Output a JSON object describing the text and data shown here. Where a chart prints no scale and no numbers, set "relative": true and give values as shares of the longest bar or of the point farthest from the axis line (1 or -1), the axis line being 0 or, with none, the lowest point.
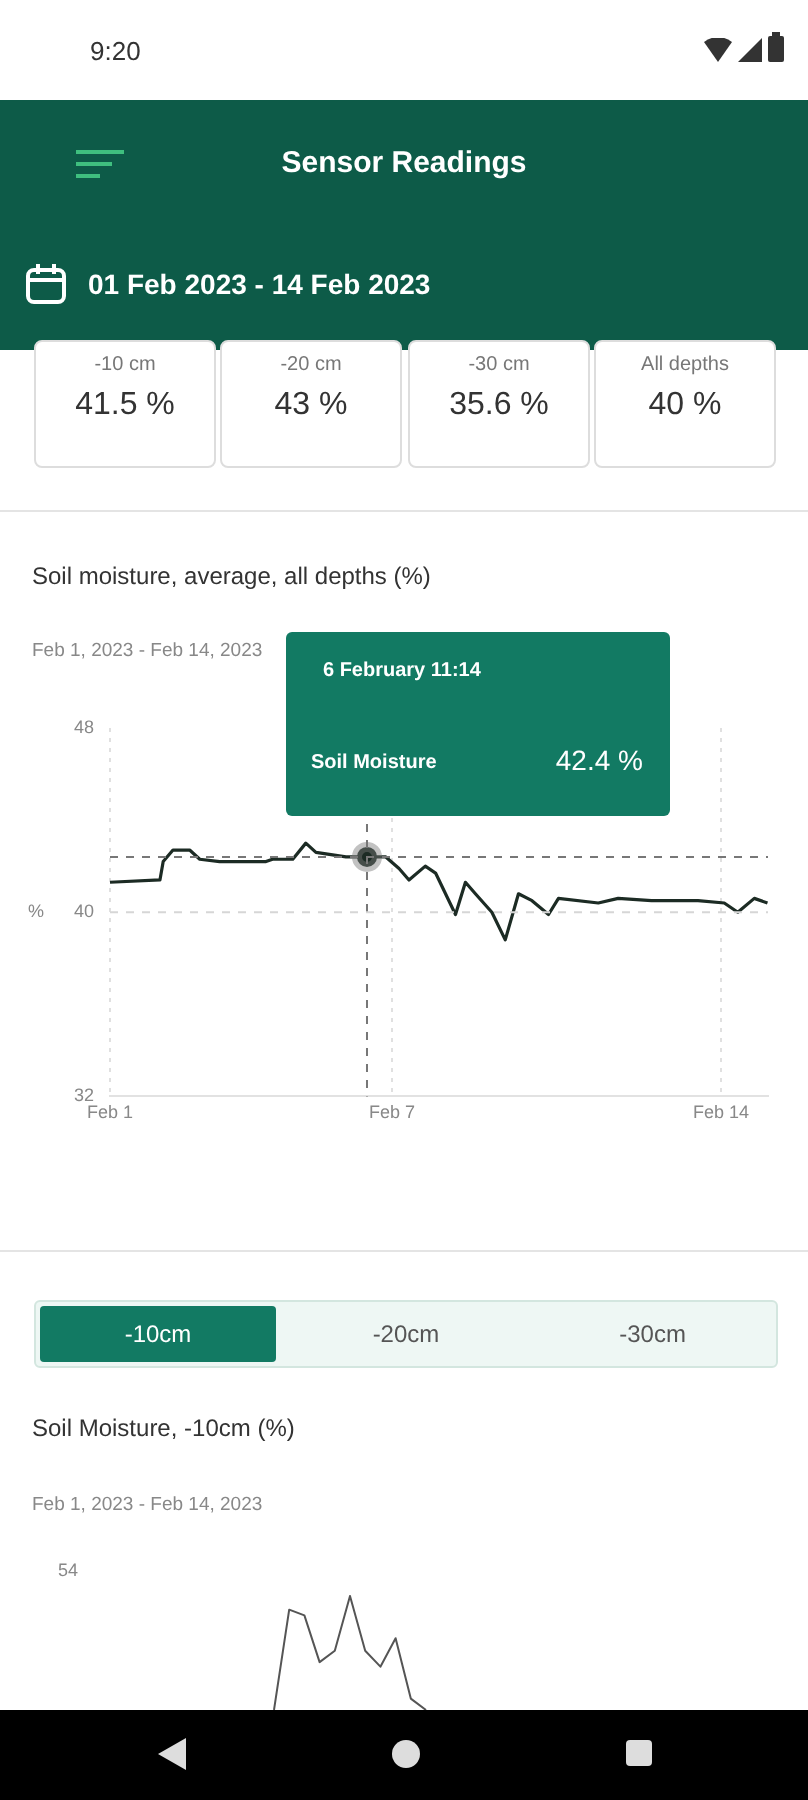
{
  "chart_data": [
    {
      "type": "other",
      "title": "Sensor Readings",
      "subtitle": "01 Feb 2023 - 14 Feb 2023",
      "annotations": [
        "9:20",
        "-10 cm",
        "41.5 %",
        "-20 cm",
        "43 %",
        "-30 cm",
        "35.6 %",
        "All depths",
        "40 %"
      ]
    },
    {
      "type": "line",
      "title": "Soil moisture, average, all depths (%)",
      "subtitle": "Feb 1, 2023 - Feb 14, 2023",
      "ylabel": "%",
      "x": [
        "2023-02-01T00:00",
        "2023-02-02T01:30",
        "2023-02-02T03:10",
        "2023-02-02T08:10",
        "2023-02-02T16:40",
        "2023-02-02T21:50",
        "2023-02-03T08:00",
        "2023-02-04T07:40",
        "2023-02-04T11:00",
        "2023-02-04T21:20",
        "2023-02-05T04:00",
        "2023-02-05T09:10",
        "2023-02-06T00:30",
        "2023-02-06T11:14",
        "2023-02-06T20:50",
        "2023-02-07T03:35",
        "2023-02-07T08:40",
        "2023-02-07T17:00",
        "2023-02-07T22:15",
        "2023-02-08T08:25",
        "2023-02-08T13:30",
        "2023-02-08T18:35",
        "2023-02-09T03:00",
        "2023-02-09T09:50",
        "2023-02-09T16:35",
        "2023-02-09T23:30",
        "2023-02-10T07:55",
        "2023-02-10T13:00",
        "2023-02-11T09:20",
        "2023-02-11T19:30",
        "2023-02-12T12:30",
        "2023-02-13T12:15",
        "2023-02-14T01:40",
        "2023-02-14T08:35",
        "2023-02-14T17:00",
        "2023-02-14T23:45"
      ],
      "series": [
        {
          "name": "Soil Moisture",
          "color": "#1c2b24",
          "values": [
            41.3,
            41.4,
            42.2,
            42.7,
            42.7,
            42.3,
            42.2,
            42.2,
            42.3,
            42.3,
            43.0,
            42.6,
            42.4,
            42.4,
            42.4,
            41.9,
            41.4,
            42.0,
            41.7,
            39.9,
            41.3,
            40.8,
            40.0,
            38.8,
            40.8,
            40.5,
            39.9,
            40.6,
            40.4,
            40.6,
            40.5,
            40.5,
            40.4,
            40.0,
            40.6,
            40.4
          ]
        }
      ],
      "xlim": [
        "2023-02-01",
        "2023-02-15"
      ],
      "xticks": [
        {
          "value": "2023-02-01",
          "label": "Feb 1"
        },
        {
          "value": "2023-02-07",
          "label": "Feb 7"
        },
        {
          "value": "2023-02-14",
          "label": "Feb 14"
        }
      ],
      "ylim": [
        32,
        48
      ],
      "yticks": [
        32,
        40,
        48
      ],
      "grid": "x",
      "marker": "none",
      "ref_lines": [
        {
          "axis": "x",
          "value": "2023-02-06T11:14",
          "line_style": "dashed"
        },
        {
          "axis": "y",
          "value": 42.4,
          "line_style": "dashed"
        },
        {
          "axis": "y",
          "value": 40,
          "line_style": "dashed",
          "color": "#d6d6d6"
        }
      ],
      "annotations": [
        "6 February 11:14",
        "42.4 %"
      ]
    },
    {
      "type": "other",
      "annotations": [
        "-10cm",
        "-20cm",
        "-30cm"
      ]
    },
    {
      "type": "line",
      "title": "Soil Moisture, -10cm (%)",
      "subtitle": "Feb 1, 2023 - Feb 14, 2023",
      "relative": true,
      "categories": [
        null,
        null,
        null,
        null,
        null,
        null,
        null,
        null,
        null,
        null,
        null
      ],
      "series": [
        {
          "color": "#555555",
          "values": [
            0,
            0.88,
            0.83,
            0.42,
            0.52,
            1,
            0.52,
            0.38,
            0.63,
            0.1,
            0
          ]
        }
      ],
      "annotations": [
        "54"
      ]
    }
  ]
}
